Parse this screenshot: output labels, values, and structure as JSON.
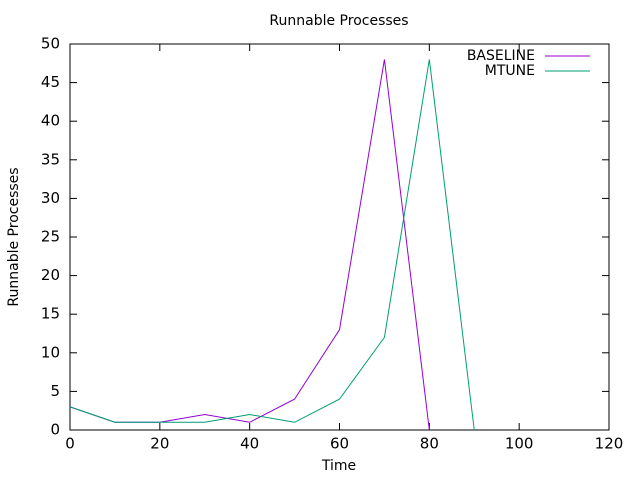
{
  "chart_data": {
    "type": "line",
    "title": "Runnable Processes",
    "x_label": "Time",
    "y_label": "Runnable Processes",
    "x": [
      0,
      10,
      20,
      30,
      40,
      50,
      60,
      70,
      80,
      90
    ],
    "series": [
      {
        "name": "BASELINE",
        "color": "#9400d3",
        "values": [
          3,
          1,
          1,
          2,
          1,
          4,
          13,
          48,
          0,
          null
        ]
      },
      {
        "name": "MTUNE",
        "color": "#009e73",
        "values": [
          3,
          1,
          1,
          1,
          2,
          1,
          4,
          12,
          48,
          0
        ]
      }
    ],
    "xlim": [
      0,
      120
    ],
    "xticks": [
      0,
      20,
      40,
      60,
      80,
      100,
      120
    ],
    "ylim": [
      0,
      50
    ],
    "yticks": [
      0,
      5,
      10,
      15,
      20,
      25,
      30,
      35,
      40,
      45,
      50
    ],
    "grid": false,
    "legend": "top-right"
  }
}
